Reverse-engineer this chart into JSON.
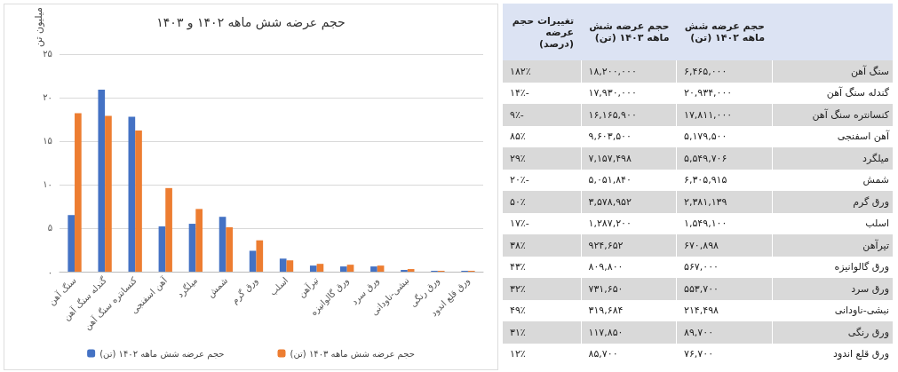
{
  "chart_data": [
    {
      "type": "bar",
      "title": "حجم عرضه شش ماهه ۱۴۰۲ و ۱۴۰۳",
      "ylabel": "میلیون تن",
      "categories": [
        "سنگ آهن",
        "گندله سنگ آهن",
        "کنسانتره سنگ آهن",
        "آهن اسفنجی",
        "میلگرد",
        "شمش",
        "ورق گرم",
        "اسلب",
        "تیرآهن",
        "ورق گالوانیزه",
        "ورق سرد",
        "نبشی-ناودانی",
        "ورق رنگی",
        "ورق قلع اندود"
      ],
      "series": [
        {
          "name": "حجم عرضه شش ماهه ۱۴۰۲ (تن)",
          "color": "#4472c4",
          "values": [
            6.5,
            20.9,
            17.8,
            5.2,
            5.5,
            6.3,
            2.4,
            1.5,
            0.7,
            0.6,
            0.6,
            0.2,
            0.1,
            0.1
          ]
        },
        {
          "name": "حجم عرضه شش ماهه ۱۴۰۳ (تن)",
          "color": "#ed7d31",
          "values": [
            18.2,
            17.9,
            16.2,
            9.6,
            7.2,
            5.1,
            3.6,
            1.3,
            0.9,
            0.8,
            0.7,
            0.3,
            0.1,
            0.1
          ]
        }
      ],
      "ylim": [
        0,
        25
      ],
      "yticks": [
        {
          "value": 0,
          "label": "۰"
        },
        {
          "value": 5,
          "label": "۵"
        },
        {
          "value": 10,
          "label": "۱۰"
        },
        {
          "value": 15,
          "label": "۱۵"
        },
        {
          "value": 20,
          "label": "۲۰"
        },
        {
          "value": 25,
          "label": "۲۵"
        }
      ],
      "grid": "y",
      "legend": "bottom"
    },
    {
      "type": "other",
      "categories": [
        null,
        "حجم عرضه شش ماهه ۱۴۰۲ (تن)",
        "حجم عرضه شش ماهه ۱۴۰۳ (تن)",
        "تغییرات حجم عرضه (درصد)"
      ],
      "cell_labels": [
        [
          "سنگ آهن",
          "۶,۴۶۵,۰۰۰",
          "۱۸,۲۰۰,۰۰۰",
          "۱۸۲٪"
        ],
        [
          "گندله سنگ آهن",
          "۲۰,۹۳۴,۰۰۰",
          "۱۷,۹۳۰,۰۰۰",
          "-۱۴٪"
        ],
        [
          "کنسانتره سنگ آهن",
          "۱۷,۸۱۱,۰۰۰",
          "۱۶,۱۶۵,۹۰۰",
          "-۹٪"
        ],
        [
          "آهن اسفنجی",
          "۵,۱۷۹,۵۰۰",
          "۹,۶۰۳,۵۰۰",
          "۸۵٪"
        ],
        [
          "میلگرد",
          "۵,۵۴۹,۷۰۶",
          "۷,۱۵۷,۴۹۸",
          "۲۹٪"
        ],
        [
          "شمش",
          "۶,۳۰۵,۹۱۵",
          "۵,۰۵۱,۸۴۰",
          "-۲۰٪"
        ],
        [
          "ورق گرم",
          "۲,۳۸۱,۱۳۹",
          "۳,۵۷۸,۹۵۲",
          "۵۰٪"
        ],
        [
          "اسلب",
          "۱,۵۴۹,۱۰۰",
          "۱,۲۸۷,۲۰۰",
          "-۱۷٪"
        ],
        [
          "تیرآهن",
          "۶۷۰,۸۹۸",
          "۹۲۴,۶۵۲",
          "۳۸٪"
        ],
        [
          "ورق گالوانیزه",
          "۵۶۷,۰۰۰",
          "۸۰۹,۸۰۰",
          "۴۳٪"
        ],
        [
          "ورق سرد",
          "۵۵۳,۷۰۰",
          "۷۳۱,۶۵۰",
          "۳۲٪"
        ],
        [
          "نبشی-ناودانی",
          "۲۱۴,۴۹۸",
          "۳۱۹,۶۸۴",
          "۴۹٪"
        ],
        [
          "ورق رنگی",
          "۸۹,۷۰۰",
          "۱۱۷,۸۵۰",
          "۳۱٪"
        ],
        [
          "ورق قلع اندود",
          "۷۶,۷۰۰",
          "۸۵,۷۰۰",
          "۱۲٪"
        ]
      ]
    }
  ]
}
